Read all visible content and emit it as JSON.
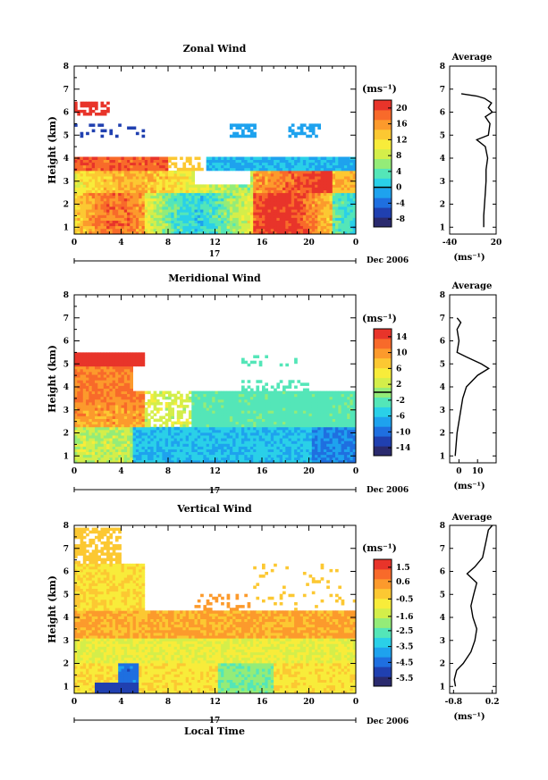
{
  "chart_data": [
    {
      "type": "heatmap",
      "title": "Zonal Wind",
      "ylabel": "Height (km)",
      "xlim": [
        0,
        24
      ],
      "ylim": [
        0.7,
        8
      ],
      "x_ticks": [
        "0",
        "4",
        "8",
        "12",
        "16",
        "20",
        "0"
      ],
      "y_ticks": [
        "1",
        "2",
        "3",
        "4",
        "5",
        "6",
        "7",
        "8"
      ],
      "date_marker": "17",
      "date_label": "Dec 2006",
      "colorbar": {
        "unit": "(ms⁻¹)",
        "ticks": [
          "20",
          "16",
          "12",
          "8",
          "4",
          "0",
          "-4",
          "-8"
        ],
        "range": [
          -10,
          22
        ],
        "contour_at": 0
      },
      "average": {
        "title": "Average",
        "xlabel": "(ms⁻¹)",
        "x_ticks": [
          "-40",
          "20"
        ],
        "xlim": [
          -40,
          20
        ],
        "profile": [
          [
            4,
            1.0
          ],
          [
            4,
            1.5
          ],
          [
            5,
            2.0
          ],
          [
            6,
            2.5
          ],
          [
            7,
            3.0
          ],
          [
            7,
            3.5
          ],
          [
            9,
            4.0
          ],
          [
            6,
            4.5
          ],
          [
            -5,
            4.8
          ],
          [
            10,
            5.0
          ],
          [
            12,
            5.5
          ],
          [
            6,
            5.8
          ],
          [
            15,
            6.0
          ],
          [
            10,
            6.2
          ],
          [
            14,
            6.4
          ],
          [
            5,
            6.6
          ],
          [
            -5,
            6.7
          ],
          [
            -25,
            6.8
          ]
        ]
      }
    },
    {
      "type": "heatmap",
      "title": "Meridional Wind",
      "ylabel": "Height (km)",
      "xlim": [
        0,
        24
      ],
      "ylim": [
        0.7,
        8
      ],
      "x_ticks": [
        "0",
        "4",
        "8",
        "12",
        "16",
        "20",
        "0"
      ],
      "y_ticks": [
        "1",
        "2",
        "3",
        "4",
        "5",
        "6",
        "7",
        "8"
      ],
      "date_marker": "17",
      "date_label": "Dec 2006",
      "colorbar": {
        "unit": "(ms⁻¹)",
        "ticks": [
          "14",
          "10",
          "6",
          "2",
          "-2",
          "-6",
          "-10",
          "-14"
        ],
        "range": [
          -16,
          16
        ],
        "contour_at": 0
      },
      "average": {
        "title": "Average",
        "xlabel": "(ms⁻¹)",
        "x_ticks": [
          "0",
          "10"
        ],
        "xlim": [
          -5,
          20
        ],
        "profile": [
          [
            -2,
            1.0
          ],
          [
            -1,
            2.0
          ],
          [
            0,
            2.5
          ],
          [
            1,
            3.0
          ],
          [
            2,
            3.5
          ],
          [
            4,
            4.0
          ],
          [
            10,
            4.5
          ],
          [
            16,
            4.8
          ],
          [
            12,
            5.0
          ],
          [
            4,
            5.3
          ],
          [
            -1,
            5.5
          ],
          [
            0,
            6.0
          ],
          [
            -1,
            6.5
          ],
          [
            1,
            6.8
          ],
          [
            -1,
            7.0
          ]
        ]
      }
    },
    {
      "type": "heatmap",
      "title": "Vertical Wind",
      "xlabel": "Local Time",
      "ylabel": "Height (km)",
      "xlim": [
        0,
        24
      ],
      "ylim": [
        0.7,
        8
      ],
      "x_ticks": [
        "0",
        "4",
        "8",
        "12",
        "16",
        "20",
        "0"
      ],
      "y_ticks": [
        "1",
        "2",
        "3",
        "4",
        "5",
        "6",
        "7",
        "8"
      ],
      "date_marker": "17",
      "date_label": "Dec 2006",
      "colorbar": {
        "unit": "(ms⁻¹)",
        "ticks": [
          "1.5",
          "0.6",
          "-0.5",
          "-1.6",
          "-2.5",
          "-3.5",
          "-4.5",
          "-5.5"
        ],
        "range": [
          -6,
          2
        ]
      },
      "average": {
        "title": "Average",
        "xlabel": "(ms⁻¹)",
        "x_ticks": [
          "-0.8",
          "0.2"
        ],
        "xlim": [
          -0.9,
          0.3
        ],
        "profile": [
          [
            -0.75,
            1.0
          ],
          [
            -0.78,
            1.3
          ],
          [
            -0.72,
            1.7
          ],
          [
            -0.55,
            2.0
          ],
          [
            -0.35,
            2.5
          ],
          [
            -0.25,
            3.0
          ],
          [
            -0.2,
            3.5
          ],
          [
            -0.3,
            4.0
          ],
          [
            -0.35,
            4.5
          ],
          [
            -0.28,
            5.0
          ],
          [
            -0.2,
            5.5
          ],
          [
            -0.45,
            5.9
          ],
          [
            -0.25,
            6.2
          ],
          [
            -0.05,
            6.6
          ],
          [
            0.0,
            7.0
          ],
          [
            0.05,
            7.4
          ],
          [
            0.1,
            7.8
          ],
          [
            0.2,
            8.0
          ]
        ]
      }
    }
  ]
}
